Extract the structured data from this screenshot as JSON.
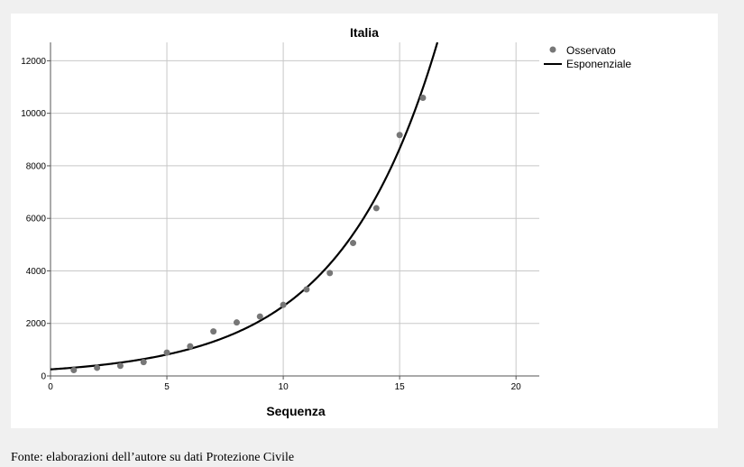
{
  "chart_data": {
    "type": "scatter",
    "title": "Italia",
    "xlabel": "Sequenza",
    "ylabel": "",
    "xlim": [
      0,
      21
    ],
    "ylim": [
      0,
      12700
    ],
    "x_ticks": [
      0,
      5,
      10,
      15,
      20
    ],
    "y_ticks": [
      0,
      2000,
      4000,
      6000,
      8000,
      10000,
      12000
    ],
    "grid": true,
    "legend_position": "top-right",
    "series": [
      {
        "name": "Osservato",
        "kind": "points",
        "color": "#777777",
        "x": [
          1,
          2,
          3,
          4,
          5,
          6,
          7,
          8,
          9,
          10,
          11,
          12,
          13,
          14,
          15,
          16
        ],
        "y": [
          221,
          311,
          385,
          528,
          888,
          1128,
          1694,
          2036,
          2263,
          2706,
          3296,
          3916,
          5061,
          6387,
          9172,
          10590
        ]
      },
      {
        "name": "Esponenziale",
        "kind": "line",
        "color": "#000000",
        "model": {
          "a": 250,
          "b": 0.2363
        }
      }
    ]
  },
  "footer": {
    "source": "Fonte: elaborazioni dell’autore su dati Protezione Civile"
  }
}
